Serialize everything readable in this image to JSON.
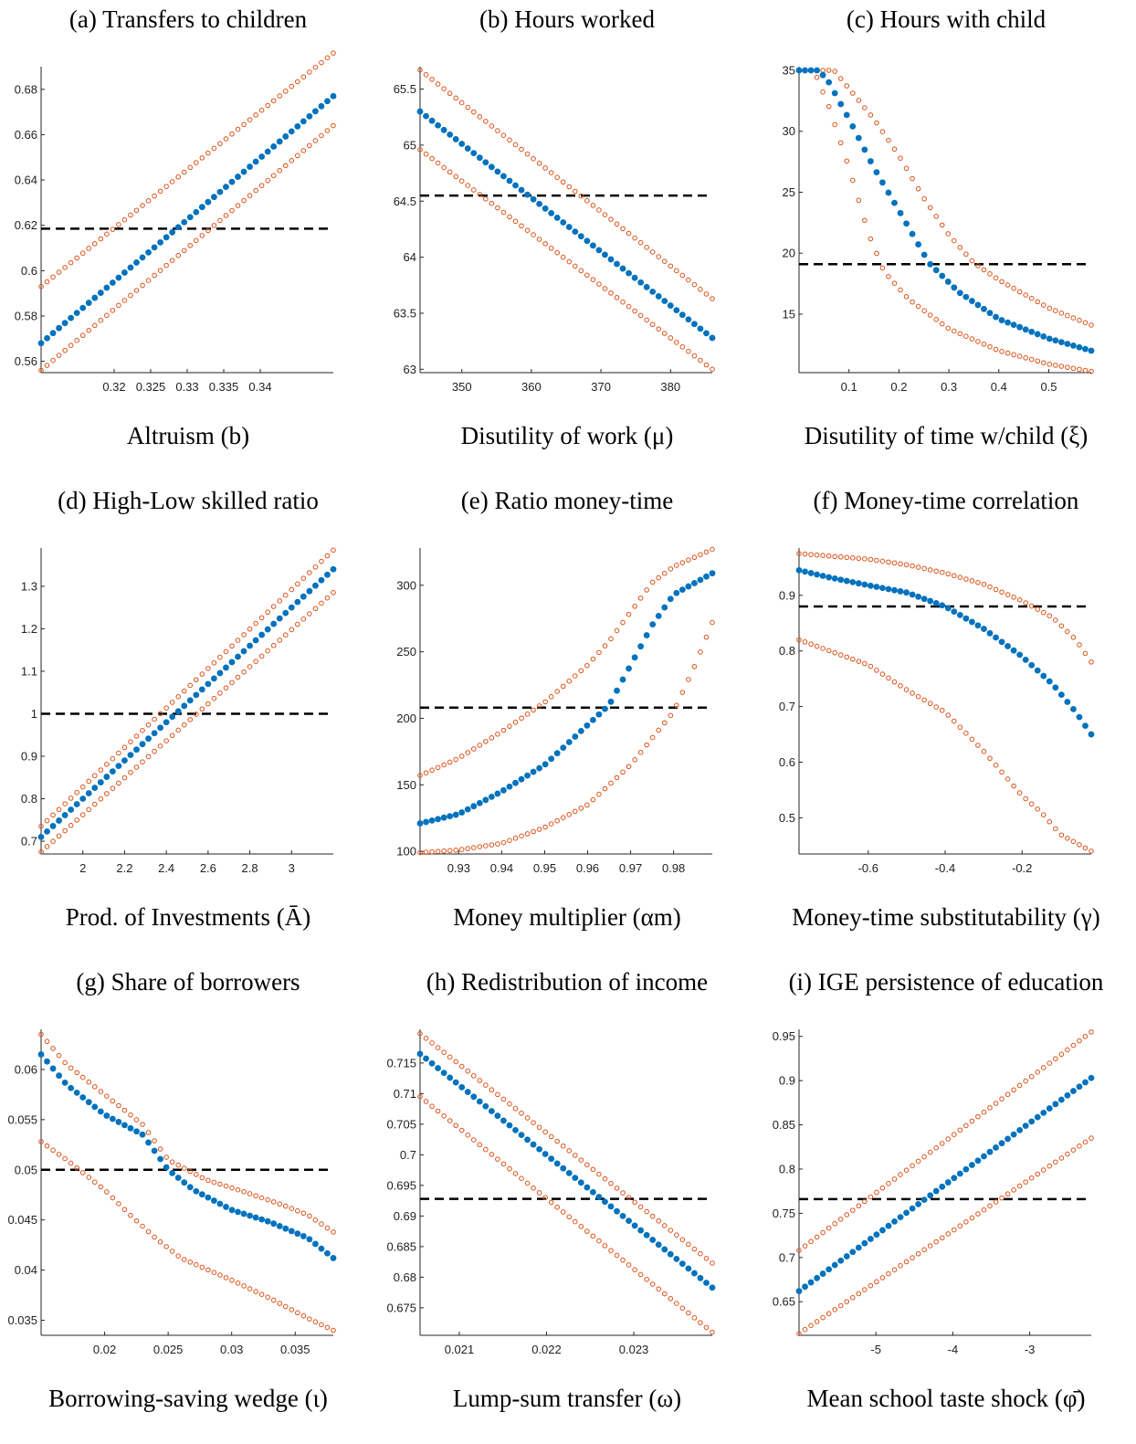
{
  "colors": {
    "baseline": "#0072BD",
    "bounds": "#D95319",
    "target": "#000000"
  },
  "chart_data": [
    {
      "type": "scatter",
      "title": "(a) Transfers to children",
      "xlabel": "Altruism (b)",
      "xlim": [
        0.31,
        0.35
      ],
      "ylim": [
        0.555,
        0.69
      ],
      "xticks": [
        0.32,
        0.325,
        0.33,
        0.335,
        0.34
      ],
      "xtick_labels": [
        "0.32",
        "0.325",
        "0.33",
        "0.335",
        "0.34"
      ],
      "yticks": [
        0.56,
        0.58,
        0.6,
        0.62,
        0.64,
        0.66,
        0.68
      ],
      "ytick_labels": [
        "0.56",
        "0.58",
        "0.6",
        "0.62",
        "0.64",
        "0.66",
        "0.68"
      ],
      "target": 0.6185,
      "n": 50,
      "center": [
        [
          0.31,
          0.568
        ],
        [
          0.35,
          0.677
        ]
      ],
      "upper": [
        [
          0.31,
          0.593
        ],
        [
          0.35,
          0.696
        ]
      ],
      "lower": [
        [
          0.31,
          0.556
        ],
        [
          0.35,
          0.664
        ]
      ]
    },
    {
      "type": "scatter",
      "title": "(b) Hours worked",
      "xlabel": "Disutility of work (μ)",
      "xlim": [
        344,
        386
      ],
      "ylim": [
        62.97,
        65.7
      ],
      "xticks": [
        350,
        360,
        370,
        380
      ],
      "xtick_labels": [
        "350",
        "360",
        "370",
        "380"
      ],
      "yticks": [
        63,
        63.5,
        64,
        64.5,
        65,
        65.5
      ],
      "ytick_labels": [
        "63",
        "63.5",
        "64",
        "64.5",
        "65",
        "65.5"
      ],
      "target": 64.55,
      "n": 50,
      "center": [
        [
          344,
          65.3
        ],
        [
          386,
          63.28
        ]
      ],
      "upper": [
        [
          344,
          65.67
        ],
        [
          386,
          63.63
        ]
      ],
      "lower": [
        [
          344,
          64.96
        ],
        [
          386,
          63.0
        ]
      ]
    },
    {
      "type": "scatter",
      "title": "(c) Hours with child",
      "xlabel": "Disutility of time w/child (ξ)",
      "xlim": [
        0.0,
        0.585
      ],
      "ylim": [
        10.2,
        35.3
      ],
      "xticks": [
        0.1,
        0.2,
        0.3,
        0.4,
        0.5
      ],
      "xtick_labels": [
        "0.1",
        "0.2",
        "0.3",
        "0.4",
        "0.5"
      ],
      "yticks": [
        15,
        20,
        25,
        30,
        35
      ],
      "ytick_labels": [
        "15",
        "20",
        "25",
        "30",
        "35"
      ],
      "target": 19.1,
      "n": 50,
      "center": [
        [
          0.0,
          35
        ],
        [
          0.04,
          35
        ],
        [
          0.06,
          34
        ],
        [
          0.1,
          31
        ],
        [
          0.15,
          27
        ],
        [
          0.2,
          23.5
        ],
        [
          0.26,
          19.2
        ],
        [
          0.32,
          16.8
        ],
        [
          0.4,
          14.6
        ],
        [
          0.5,
          13.0
        ],
        [
          0.585,
          12.0
        ]
      ],
      "upper": [
        [
          0.0,
          35
        ],
        [
          0.07,
          35
        ],
        [
          0.1,
          33.5
        ],
        [
          0.15,
          31
        ],
        [
          0.2,
          28
        ],
        [
          0.25,
          24.5
        ],
        [
          0.3,
          21.5
        ],
        [
          0.35,
          19.2
        ],
        [
          0.4,
          17.8
        ],
        [
          0.5,
          15.5
        ],
        [
          0.585,
          14.1
        ]
      ],
      "lower": [
        [
          0.0,
          35
        ],
        [
          0.03,
          35
        ],
        [
          0.06,
          32
        ],
        [
          0.1,
          27
        ],
        [
          0.14,
          21.5
        ],
        [
          0.17,
          18.5
        ],
        [
          0.22,
          16.2
        ],
        [
          0.3,
          13.8
        ],
        [
          0.4,
          12.0
        ],
        [
          0.5,
          10.9
        ],
        [
          0.585,
          10.3
        ]
      ]
    },
    {
      "type": "scatter",
      "title": "(d) High-Low skilled ratio",
      "xlabel": "Prod. of Investments (Ā)",
      "xlim": [
        1.8,
        3.2
      ],
      "ylim": [
        0.67,
        1.39
      ],
      "xticks": [
        2,
        2.2,
        2.4,
        2.6,
        2.8,
        3
      ],
      "xtick_labels": [
        "2",
        "2.2",
        "2.4",
        "2.6",
        "2.8",
        "3"
      ],
      "yticks": [
        0.7,
        0.8,
        0.9,
        1,
        1.1,
        1.2,
        1.3
      ],
      "ytick_labels": [
        "0.7",
        "0.8",
        "0.9",
        "1",
        "1.1",
        "1.2",
        "1.3"
      ],
      "target": 1.0,
      "n": 50,
      "center": [
        [
          1.8,
          0.71
        ],
        [
          3.2,
          1.34
        ]
      ],
      "upper": [
        [
          1.8,
          0.735
        ],
        [
          3.2,
          1.385
        ]
      ],
      "lower": [
        [
          1.8,
          0.675
        ],
        [
          3.2,
          1.285
        ]
      ]
    },
    {
      "type": "scatter",
      "title": "(e) Ratio money-time",
      "xlabel": "Money multiplier (αm)",
      "xlim": [
        0.921,
        0.989
      ],
      "ylim": [
        98,
        328
      ],
      "xticks": [
        0.93,
        0.94,
        0.95,
        0.96,
        0.97,
        0.98
      ],
      "xtick_labels": [
        "0.93",
        "0.94",
        "0.95",
        "0.96",
        "0.97",
        "0.98"
      ],
      "yticks": [
        100,
        150,
        200,
        250,
        300
      ],
      "ytick_labels": [
        "100",
        "150",
        "200",
        "250",
        "300"
      ],
      "target": 208,
      "n": 50,
      "center": [
        [
          0.921,
          121
        ],
        [
          0.93,
          128
        ],
        [
          0.94,
          145
        ],
        [
          0.95,
          165
        ],
        [
          0.96,
          195
        ],
        [
          0.965,
          210
        ],
        [
          0.97,
          240
        ],
        [
          0.975,
          270
        ],
        [
          0.98,
          293
        ],
        [
          0.989,
          309
        ]
      ],
      "upper": [
        [
          0.921,
          157
        ],
        [
          0.93,
          170
        ],
        [
          0.94,
          190
        ],
        [
          0.95,
          212
        ],
        [
          0.96,
          240
        ],
        [
          0.965,
          258
        ],
        [
          0.97,
          280
        ],
        [
          0.975,
          302
        ],
        [
          0.98,
          314
        ],
        [
          0.989,
          327
        ]
      ],
      "lower": [
        [
          0.921,
          99
        ],
        [
          0.93,
          101
        ],
        [
          0.94,
          106
        ],
        [
          0.95,
          118
        ],
        [
          0.96,
          135
        ],
        [
          0.97,
          165
        ],
        [
          0.975,
          185
        ],
        [
          0.98,
          205
        ],
        [
          0.985,
          240
        ],
        [
          0.989,
          272
        ]
      ]
    },
    {
      "type": "scatter",
      "title": "(f) Money-time correlation",
      "xlabel": "Money-time substitutability (γ)",
      "xlim": [
        -0.78,
        -0.02
      ],
      "ylim": [
        0.435,
        0.985
      ],
      "xticks": [
        -0.6,
        -0.4,
        -0.2
      ],
      "xtick_labels": [
        "-0.6",
        "-0.4",
        "-0.2"
      ],
      "yticks": [
        0.5,
        0.6,
        0.7,
        0.8,
        0.9
      ],
      "ytick_labels": [
        "0.5",
        "0.6",
        "0.7",
        "0.8",
        "0.9"
      ],
      "target": 0.88,
      "n": 50,
      "center": [
        [
          -0.78,
          0.945
        ],
        [
          -0.7,
          0.932
        ],
        [
          -0.6,
          0.918
        ],
        [
          -0.5,
          0.905
        ],
        [
          -0.4,
          0.88
        ],
        [
          -0.3,
          0.84
        ],
        [
          -0.2,
          0.79
        ],
        [
          -0.12,
          0.74
        ],
        [
          -0.06,
          0.69
        ],
        [
          -0.02,
          0.65
        ]
      ],
      "upper": [
        [
          -0.78,
          0.975
        ],
        [
          -0.6,
          0.965
        ],
        [
          -0.5,
          0.955
        ],
        [
          -0.4,
          0.94
        ],
        [
          -0.3,
          0.92
        ],
        [
          -0.2,
          0.89
        ],
        [
          -0.12,
          0.86
        ],
        [
          -0.06,
          0.82
        ],
        [
          -0.02,
          0.78
        ]
      ],
      "lower": [
        [
          -0.78,
          0.82
        ],
        [
          -0.7,
          0.8
        ],
        [
          -0.6,
          0.775
        ],
        [
          -0.5,
          0.73
        ],
        [
          -0.4,
          0.69
        ],
        [
          -0.3,
          0.62
        ],
        [
          -0.2,
          0.54
        ],
        [
          -0.15,
          0.51
        ],
        [
          -0.1,
          0.47
        ],
        [
          -0.02,
          0.44
        ]
      ]
    },
    {
      "type": "scatter",
      "title": "(g) Share of borrowers",
      "xlabel": "Borrowing-saving wedge (ι)",
      "xlim": [
        0.015,
        0.038
      ],
      "ylim": [
        0.0335,
        0.064
      ],
      "xticks": [
        0.02,
        0.025,
        0.03,
        0.035
      ],
      "xtick_labels": [
        "0.02",
        "0.025",
        "0.03",
        "0.035"
      ],
      "yticks": [
        0.035,
        0.04,
        0.045,
        0.05,
        0.055,
        0.06
      ],
      "ytick_labels": [
        "0.035",
        "0.04",
        "0.045",
        "0.05",
        "0.055",
        "0.06"
      ],
      "target": 0.05,
      "n": 50,
      "center": [
        [
          0.015,
          0.0615
        ],
        [
          0.017,
          0.0585
        ],
        [
          0.02,
          0.0555
        ],
        [
          0.023,
          0.0535
        ],
        [
          0.025,
          0.05
        ],
        [
          0.027,
          0.048
        ],
        [
          0.03,
          0.046
        ],
        [
          0.033,
          0.0448
        ],
        [
          0.036,
          0.0432
        ],
        [
          0.038,
          0.0412
        ]
      ],
      "upper": [
        [
          0.015,
          0.0635
        ],
        [
          0.017,
          0.0605
        ],
        [
          0.02,
          0.0575
        ],
        [
          0.023,
          0.0545
        ],
        [
          0.025,
          0.051
        ],
        [
          0.028,
          0.049
        ],
        [
          0.031,
          0.0478
        ],
        [
          0.034,
          0.0465
        ],
        [
          0.036,
          0.0455
        ],
        [
          0.038,
          0.0438
        ]
      ],
      "lower": [
        [
          0.015,
          0.0528
        ],
        [
          0.017,
          0.051
        ],
        [
          0.02,
          0.048
        ],
        [
          0.022,
          0.0455
        ],
        [
          0.024,
          0.0432
        ],
        [
          0.026,
          0.0412
        ],
        [
          0.03,
          0.039
        ],
        [
          0.033,
          0.0372
        ],
        [
          0.036,
          0.0352
        ],
        [
          0.038,
          0.034
        ]
      ]
    },
    {
      "type": "scatter",
      "title": "(h) Redistribution of income",
      "xlabel": "Lump-sum transfer (ω)",
      "xlim": [
        0.02055,
        0.0239
      ],
      "ylim": [
        0.6705,
        0.7205
      ],
      "xticks": [
        0.021,
        0.022,
        0.023
      ],
      "xtick_labels": [
        "0.021",
        "0.022",
        "0.023"
      ],
      "yticks": [
        0.675,
        0.68,
        0.685,
        0.69,
        0.695,
        0.7,
        0.705,
        0.71,
        0.715
      ],
      "ytick_labels": [
        "0.675",
        "0.68",
        "0.685",
        "0.69",
        "0.695",
        "0.7",
        "0.705",
        "0.71",
        "0.715"
      ],
      "target": 0.6928,
      "n": 50,
      "center": [
        [
          0.02055,
          0.7165
        ],
        [
          0.0239,
          0.6783
        ]
      ],
      "upper": [
        [
          0.02055,
          0.7198
        ],
        [
          0.0239,
          0.6823
        ]
      ],
      "lower": [
        [
          0.02055,
          0.7095
        ],
        [
          0.0239,
          0.671
        ]
      ]
    },
    {
      "type": "scatter",
      "title": "(i) IGE persistence of education",
      "xlabel": "Mean school taste shock (φ̄)",
      "xlim": [
        -6.0,
        -2.2
      ],
      "ylim": [
        0.612,
        0.958
      ],
      "xticks": [
        -5,
        -4,
        -3
      ],
      "xtick_labels": [
        "-5",
        "-4",
        "-3"
      ],
      "yticks": [
        0.65,
        0.7,
        0.75,
        0.8,
        0.85,
        0.9,
        0.95
      ],
      "ytick_labels": [
        "0.65",
        "0.7",
        "0.75",
        "0.8",
        "0.85",
        "0.9",
        "0.95"
      ],
      "target": 0.766,
      "n": 50,
      "center": [
        [
          -6.0,
          0.662
        ],
        [
          -2.2,
          0.903
        ]
      ],
      "upper": [
        [
          -6.0,
          0.708
        ],
        [
          -2.2,
          0.955
        ]
      ],
      "lower": [
        [
          -6.0,
          0.614
        ],
        [
          -2.2,
          0.835
        ]
      ]
    }
  ]
}
